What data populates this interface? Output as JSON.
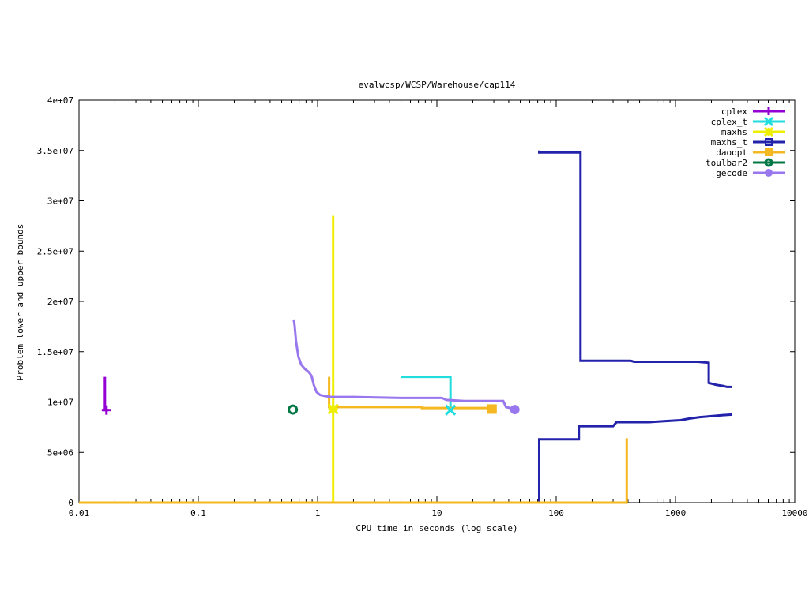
{
  "chart_data": {
    "type": "line",
    "title": "evalwcsp/WCSP/Warehouse/cap114",
    "xlabel": "CPU time in seconds (log scale)",
    "ylabel": "Problem lower and upper bounds",
    "x_scale": "log",
    "xlim": [
      0.01,
      10000
    ],
    "ylim": [
      0,
      40000000
    ],
    "x_ticks": [
      {
        "v": 0.01,
        "label": "0.01"
      },
      {
        "v": 0.1,
        "label": "0.1"
      },
      {
        "v": 1,
        "label": "1"
      },
      {
        "v": 10,
        "label": "10"
      },
      {
        "v": 100,
        "label": "100"
      },
      {
        "v": 1000,
        "label": "1000"
      },
      {
        "v": 10000,
        "label": "10000"
      }
    ],
    "y_ticks": [
      {
        "v": 0,
        "label": "0"
      },
      {
        "v": 5000000,
        "label": "5e+06"
      },
      {
        "v": 10000000,
        "label": "1e+07"
      },
      {
        "v": 15000000,
        "label": "1.5e+07"
      },
      {
        "v": 20000000,
        "label": "2e+07"
      },
      {
        "v": 25000000,
        "label": "2.5e+07"
      },
      {
        "v": 30000000,
        "label": "3e+07"
      },
      {
        "v": 35000000,
        "label": "3.5e+07"
      },
      {
        "v": 40000000,
        "label": "4e+07"
      }
    ],
    "grid": false,
    "legend_position": "top-right",
    "series": [
      {
        "name": "cplex",
        "color": "#9400D3",
        "marker": "plus",
        "lines": [
          [
            [
              0.0165,
              12500000
            ],
            [
              0.0165,
              9200000
            ],
            [
              0.0175,
              9200000
            ]
          ]
        ],
        "markers": [
          [
            0.017,
            9200000
          ]
        ]
      },
      {
        "name": "cplex_t",
        "color": "#22DDDD",
        "marker": "x",
        "lines": [
          [
            [
              5,
              12500000
            ],
            [
              13,
              12500000
            ],
            [
              13,
              9200000
            ]
          ]
        ],
        "markers": [
          [
            13,
            9200000
          ]
        ]
      },
      {
        "name": "maxhs",
        "color": "#EEEE00",
        "marker": "star",
        "lines": [
          [
            [
              1.35,
              28500000
            ],
            [
              1.35,
              0
            ]
          ]
        ],
        "markers": [
          [
            1.35,
            9300000
          ]
        ]
      },
      {
        "name": "maxhs_t",
        "color": "#2222AA",
        "marker": "square-open",
        "lines": [
          [
            [
              72,
              35000000
            ],
            [
              72,
              34800000
            ],
            [
              160,
              34800000
            ],
            [
              160,
              14100000
            ],
            [
              420,
              14100000
            ],
            [
              450,
              14000000
            ],
            [
              1550,
              14000000
            ],
            [
              1900,
              13900000
            ],
            [
              1900,
              11900000
            ],
            [
              2200,
              11700000
            ],
            [
              2500,
              11600000
            ],
            [
              2700,
              11500000
            ],
            [
              3000,
              11500000
            ]
          ],
          [
            [
              72,
              0
            ],
            [
              72,
              6300000
            ],
            [
              155,
              6300000
            ],
            [
              155,
              7600000
            ],
            [
              300,
              7600000
            ],
            [
              320,
              8000000
            ],
            [
              600,
              8000000
            ],
            [
              800,
              8100000
            ],
            [
              1100,
              8200000
            ],
            [
              1300,
              8350000
            ],
            [
              1600,
              8500000
            ],
            [
              2000,
              8600000
            ],
            [
              2500,
              8700000
            ],
            [
              3000,
              8750000
            ]
          ]
        ],
        "markers": []
      },
      {
        "name": "daoopt",
        "color": "#F5B820",
        "marker": "square",
        "lines": [
          [
            [
              1.25,
              12500000
            ],
            [
              1.25,
              9500000
            ],
            [
              7.5,
              9500000
            ],
            [
              7.5,
              9400000
            ],
            [
              29,
              9400000
            ]
          ],
          [
            [
              0.01,
              0
            ],
            [
              390,
              0
            ],
            [
              390,
              6400000
            ]
          ]
        ],
        "markers": [
          [
            29,
            9300000
          ]
        ]
      },
      {
        "name": "toulbar2",
        "color": "#007744",
        "marker": "circle-open",
        "lines": [],
        "markers": [
          [
            0.62,
            9250000
          ]
        ]
      },
      {
        "name": "gecode",
        "color": "#9977EE",
        "marker": "circle",
        "lines": [
          [
            [
              0.63,
              18200000
            ],
            [
              0.64,
              17800000
            ],
            [
              0.66,
              16000000
            ],
            [
              0.69,
              14500000
            ],
            [
              0.73,
              13700000
            ],
            [
              0.78,
              13300000
            ],
            [
              0.84,
              13000000
            ],
            [
              0.89,
              12600000
            ],
            [
              0.93,
              11700000
            ],
            [
              0.98,
              11000000
            ],
            [
              1.05,
              10700000
            ],
            [
              1.15,
              10600000
            ],
            [
              1.3,
              10500000
            ],
            [
              2,
              10500000
            ],
            [
              5,
              10400000
            ],
            [
              11,
              10400000
            ],
            [
              12,
              10200000
            ],
            [
              17,
              10100000
            ],
            [
              36,
              10100000
            ],
            [
              38,
              9500000
            ],
            [
              45,
              9300000
            ]
          ]
        ],
        "markers": [
          [
            45,
            9250000
          ]
        ]
      }
    ]
  }
}
